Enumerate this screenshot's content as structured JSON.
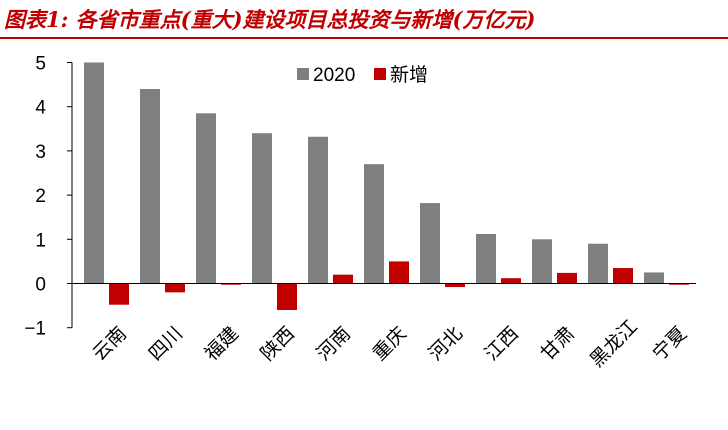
{
  "title": "图表1: 各省市重点(重大)建设项目总投资与新增(万亿元)",
  "colors": {
    "title": "#c00000",
    "series_2020": "#7f7f7f",
    "series_new": "#c00000"
  },
  "chart_data": {
    "type": "bar",
    "title": "",
    "xlabel": "",
    "ylabel": "",
    "ylim": [
      -1,
      5
    ],
    "yticks": [
      -1,
      0,
      1,
      2,
      3,
      4,
      5
    ],
    "grid": false,
    "legend_position": "top-center",
    "categories": [
      "云南",
      "四川",
      "福建",
      "陕西",
      "河南",
      "重庆",
      "河北",
      "江西",
      "甘肃",
      "黑龙江",
      "宁夏"
    ],
    "series": [
      {
        "name": "2020",
        "color": "#7f7f7f",
        "values": [
          5.0,
          4.4,
          3.85,
          3.4,
          3.32,
          2.7,
          1.82,
          1.12,
          1.0,
          0.9,
          0.25
        ]
      },
      {
        "name": "新增",
        "color": "#c00000",
        "values": [
          -0.48,
          -0.2,
          -0.02,
          -0.6,
          0.2,
          0.5,
          -0.08,
          0.12,
          0.24,
          0.35,
          -0.02
        ]
      }
    ]
  }
}
